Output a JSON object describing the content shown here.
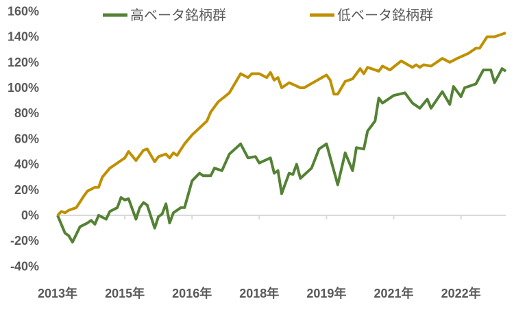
{
  "chart_data": {
    "type": "line",
    "title": "",
    "xlabel": "",
    "ylabel": "",
    "ylim": [
      -40,
      160
    ],
    "yticks": [
      "160%",
      "140%",
      "120%",
      "100%",
      "80%",
      "60%",
      "40%",
      "20%",
      "0%",
      "-20%",
      "-40%"
    ],
    "ytick_values": [
      160,
      140,
      120,
      100,
      80,
      60,
      40,
      20,
      0,
      -20,
      -40
    ],
    "x_unit": "months since start",
    "xlim": [
      0,
      120
    ],
    "xtick_labels": [
      "2013年",
      "2015年",
      "2016年",
      "2018年",
      "2019年",
      "2021年",
      "2022年"
    ],
    "xtick_positions": [
      0,
      18,
      36,
      54,
      72,
      90,
      108
    ],
    "legend_position": "top",
    "grid": "zero line only",
    "series": [
      {
        "name": "高ベータ銘柄群",
        "color": "#548235",
        "points": [
          [
            0,
            0
          ],
          [
            2,
            -14
          ],
          [
            3,
            -16
          ],
          [
            4,
            -21
          ],
          [
            6,
            -9
          ],
          [
            8,
            -6
          ],
          [
            9,
            -4
          ],
          [
            10,
            -7
          ],
          [
            11,
            0
          ],
          [
            13,
            -3
          ],
          [
            14,
            3
          ],
          [
            16,
            6
          ],
          [
            17,
            14
          ],
          [
            18,
            12
          ],
          [
            19,
            13
          ],
          [
            21,
            -3
          ],
          [
            22,
            6
          ],
          [
            23,
            10
          ],
          [
            24,
            8
          ],
          [
            26,
            -10
          ],
          [
            27,
            -1
          ],
          [
            28,
            1
          ],
          [
            29,
            9
          ],
          [
            30,
            -6
          ],
          [
            31,
            2
          ],
          [
            33,
            6
          ],
          [
            34,
            6
          ],
          [
            36,
            27
          ],
          [
            38,
            33
          ],
          [
            39,
            31
          ],
          [
            41,
            31
          ],
          [
            42,
            37
          ],
          [
            44,
            35
          ],
          [
            46,
            48
          ],
          [
            49,
            56
          ],
          [
            51,
            45
          ],
          [
            53,
            46
          ],
          [
            54,
            41
          ],
          [
            57,
            45
          ],
          [
            58,
            33
          ],
          [
            59,
            35
          ],
          [
            60,
            17
          ],
          [
            61,
            25
          ],
          [
            62,
            33
          ],
          [
            63,
            32
          ],
          [
            64,
            40
          ],
          [
            65,
            29
          ],
          [
            68,
            37
          ],
          [
            70,
            52
          ],
          [
            72,
            56
          ],
          [
            75,
            24
          ],
          [
            77,
            49
          ],
          [
            79,
            35
          ],
          [
            80,
            53
          ],
          [
            82,
            52
          ],
          [
            83,
            66
          ],
          [
            85,
            74
          ],
          [
            86,
            92
          ],
          [
            87,
            88
          ],
          [
            90,
            94
          ],
          [
            93,
            96
          ],
          [
            95,
            88
          ],
          [
            97,
            84
          ],
          [
            99,
            91
          ],
          [
            100,
            84
          ],
          [
            103,
            97
          ],
          [
            105,
            87
          ],
          [
            106,
            101
          ],
          [
            108,
            93
          ],
          [
            109,
            100
          ],
          [
            112,
            103
          ],
          [
            114,
            114
          ],
          [
            116,
            114
          ],
          [
            117,
            104
          ],
          [
            119,
            115
          ],
          [
            120,
            113
          ]
        ]
      },
      {
        "name": "低ベータ銘柄群",
        "color": "#BF9000",
        "points": [
          [
            0,
            0
          ],
          [
            1,
            3
          ],
          [
            2,
            2
          ],
          [
            3,
            4
          ],
          [
            5,
            6
          ],
          [
            7,
            15
          ],
          [
            8,
            19
          ],
          [
            10,
            22
          ],
          [
            11,
            22
          ],
          [
            12,
            30
          ],
          [
            14,
            37
          ],
          [
            15,
            39
          ],
          [
            18,
            45
          ],
          [
            19,
            50
          ],
          [
            21,
            43
          ],
          [
            23,
            51
          ],
          [
            24,
            52
          ],
          [
            26,
            42
          ],
          [
            27,
            46
          ],
          [
            29,
            48
          ],
          [
            30,
            45
          ],
          [
            31,
            49
          ],
          [
            32,
            47
          ],
          [
            34,
            56
          ],
          [
            36,
            63
          ],
          [
            40,
            74
          ],
          [
            41,
            81
          ],
          [
            43,
            89
          ],
          [
            46,
            96
          ],
          [
            49,
            111
          ],
          [
            51,
            108
          ],
          [
            52,
            111
          ],
          [
            54,
            111
          ],
          [
            56,
            108
          ],
          [
            57,
            112
          ],
          [
            58,
            106
          ],
          [
            59,
            108
          ],
          [
            60,
            100
          ],
          [
            62,
            104
          ],
          [
            65,
            100
          ],
          [
            66,
            100
          ],
          [
            72,
            110
          ],
          [
            73,
            106
          ],
          [
            74,
            95
          ],
          [
            75,
            95
          ],
          [
            77,
            105
          ],
          [
            79,
            107
          ],
          [
            81,
            115
          ],
          [
            82,
            111
          ],
          [
            83,
            116
          ],
          [
            86,
            113
          ],
          [
            87,
            117
          ],
          [
            89,
            114
          ],
          [
            92,
            121
          ],
          [
            95,
            116
          ],
          [
            96,
            118
          ],
          [
            97,
            116
          ],
          [
            98,
            118
          ],
          [
            100,
            117
          ],
          [
            103,
            123
          ],
          [
            105,
            120
          ],
          [
            107,
            123
          ],
          [
            110,
            127
          ],
          [
            112,
            131
          ],
          [
            113,
            131
          ],
          [
            115,
            140
          ],
          [
            117,
            140
          ],
          [
            120,
            143
          ]
        ]
      }
    ]
  }
}
